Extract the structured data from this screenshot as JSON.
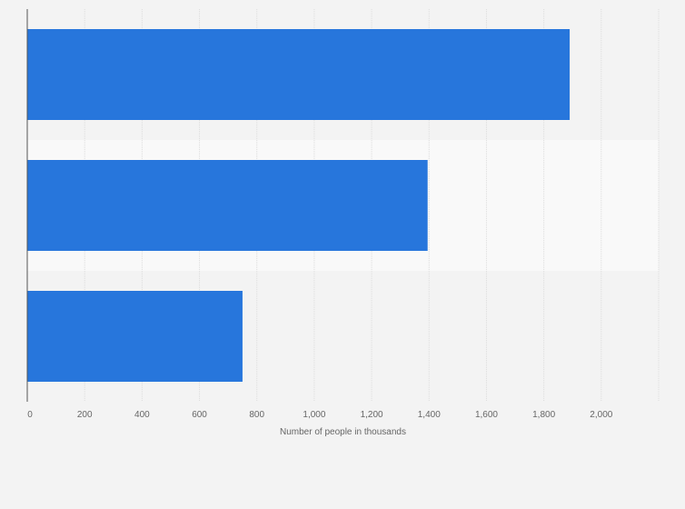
{
  "chart_data": {
    "type": "bar",
    "orientation": "horizontal",
    "categories": [
      "",
      "",
      ""
    ],
    "values": [
      1890,
      1395,
      750
    ],
    "title": "",
    "xlabel": "Number of people in thousands",
    "ylabel": "",
    "xlim": [
      0,
      2200
    ],
    "x_ticks": [
      0,
      200,
      400,
      600,
      800,
      1000,
      1200,
      1400,
      1600,
      1800,
      2000
    ],
    "x_tick_labels": [
      "0",
      "200",
      "400",
      "600",
      "800",
      "1,000",
      "1,200",
      "1,400",
      "1,600",
      "1,800",
      "2,000"
    ],
    "grid": true,
    "legend": "none",
    "colors": {
      "bar": "#2776dc",
      "background": "#f3f3f3",
      "band_alt": "#f9f9f9",
      "gridline": "#dcdcdc",
      "axis": "#555555",
      "text": "#666666"
    }
  }
}
